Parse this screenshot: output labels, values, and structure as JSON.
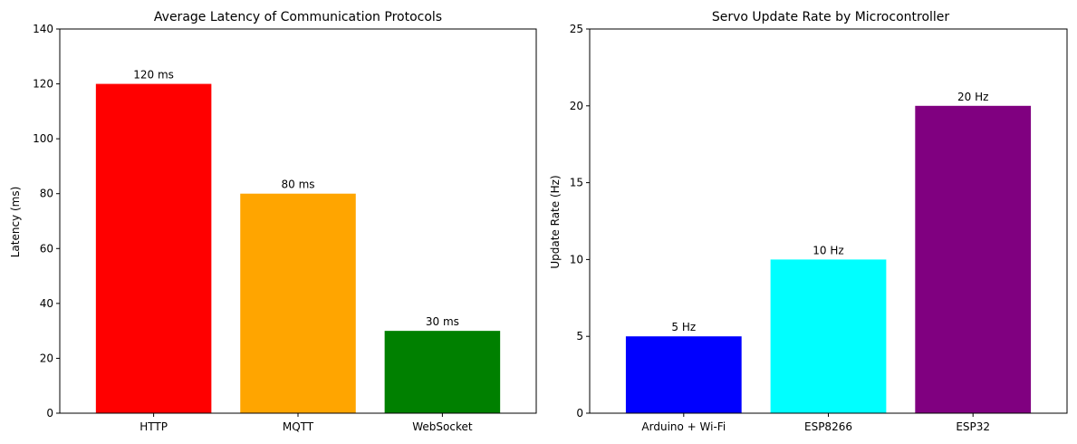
{
  "chart_data": [
    {
      "type": "bar",
      "title": "Average Latency of Communication Protocols",
      "xlabel": "",
      "ylabel": "Latency (ms)",
      "categories": [
        "HTTP",
        "MQTT",
        "WebSocket"
      ],
      "values": [
        120,
        80,
        30
      ],
      "data_labels": [
        "120 ms",
        "80 ms",
        "30 ms"
      ],
      "colors": [
        "#ff0000",
        "#ffa500",
        "#008000"
      ],
      "ylim": [
        0,
        140
      ],
      "yticks": [
        0,
        20,
        40,
        60,
        80,
        100,
        120,
        140
      ],
      "grid": false,
      "legend": "none"
    },
    {
      "type": "bar",
      "title": "Servo Update Rate by Microcontroller",
      "xlabel": "",
      "ylabel": "Update Rate (Hz)",
      "categories": [
        "Arduino + Wi-Fi",
        "ESP8266",
        "ESP32"
      ],
      "values": [
        5,
        10,
        20
      ],
      "data_labels": [
        "5 Hz",
        "10 Hz",
        "20 Hz"
      ],
      "colors": [
        "#0000ff",
        "#00ffff",
        "#800080"
      ],
      "ylim": [
        0,
        25
      ],
      "yticks": [
        0,
        5,
        10,
        15,
        20,
        25
      ],
      "grid": false,
      "legend": "none"
    }
  ]
}
